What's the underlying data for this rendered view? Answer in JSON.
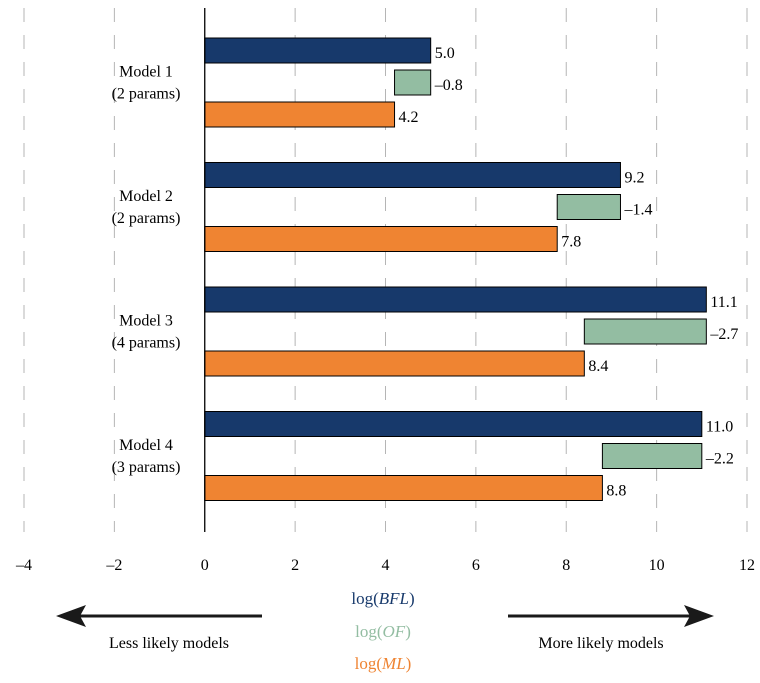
{
  "chart_data": {
    "type": "bar",
    "orientation": "horizontal",
    "xlim": [
      -4,
      12
    ],
    "x_ticks": [
      -4,
      -2,
      0,
      2,
      4,
      6,
      8,
      10,
      12
    ],
    "x_tick_labels": [
      "–4",
      "–2",
      "0",
      "2",
      "4",
      "6",
      "8",
      "10",
      "12"
    ],
    "grid": "vertical dashed",
    "categories": [
      {
        "line1": "Model 1",
        "line2": "(2 params)"
      },
      {
        "line1": "Model 2",
        "line2": "(2 params)"
      },
      {
        "line1": "Model 3",
        "line2": "(4 params)"
      },
      {
        "line1": "Model 4",
        "line2": "(3 params)"
      }
    ],
    "series": [
      {
        "key": "bfl",
        "legend_prefix": "log(",
        "legend_var": "BFL",
        "legend_suffix": ")",
        "color": "#17396b",
        "values": [
          5.0,
          9.2,
          11.1,
          11.0
        ],
        "labels": [
          "5.0",
          "9.2",
          "11.1",
          "11.0"
        ],
        "base": "zero"
      },
      {
        "key": "of",
        "legend_prefix": "log(",
        "legend_var": "OF",
        "legend_suffix": ")",
        "color": "#93bda2",
        "values": [
          -0.8,
          -1.4,
          -2.7,
          -2.2
        ],
        "labels": [
          "–0.8",
          "–1.4",
          "–2.7",
          "–2.2"
        ],
        "base": "bfl"
      },
      {
        "key": "ml",
        "legend_prefix": "log(",
        "legend_var": "ML",
        "legend_suffix": ")",
        "color": "#ef8432",
        "values": [
          4.2,
          7.8,
          8.4,
          8.8
        ],
        "labels": [
          "4.2",
          "7.8",
          "8.4",
          "8.8"
        ],
        "base": "zero"
      }
    ],
    "left_arrow_label": "Less likely models",
    "right_arrow_label": "More likely models"
  }
}
